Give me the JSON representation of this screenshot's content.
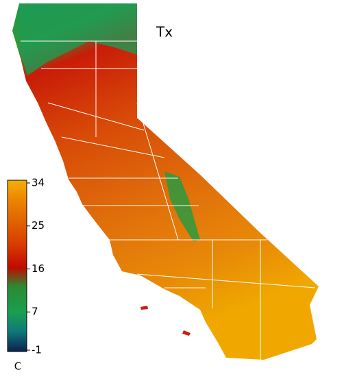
{
  "title": "Tx",
  "colorbar": {
    "unit": "C",
    "lim": [
      -1,
      34
    ],
    "ticks": [
      -1,
      7,
      16,
      25,
      34
    ]
  }
}
